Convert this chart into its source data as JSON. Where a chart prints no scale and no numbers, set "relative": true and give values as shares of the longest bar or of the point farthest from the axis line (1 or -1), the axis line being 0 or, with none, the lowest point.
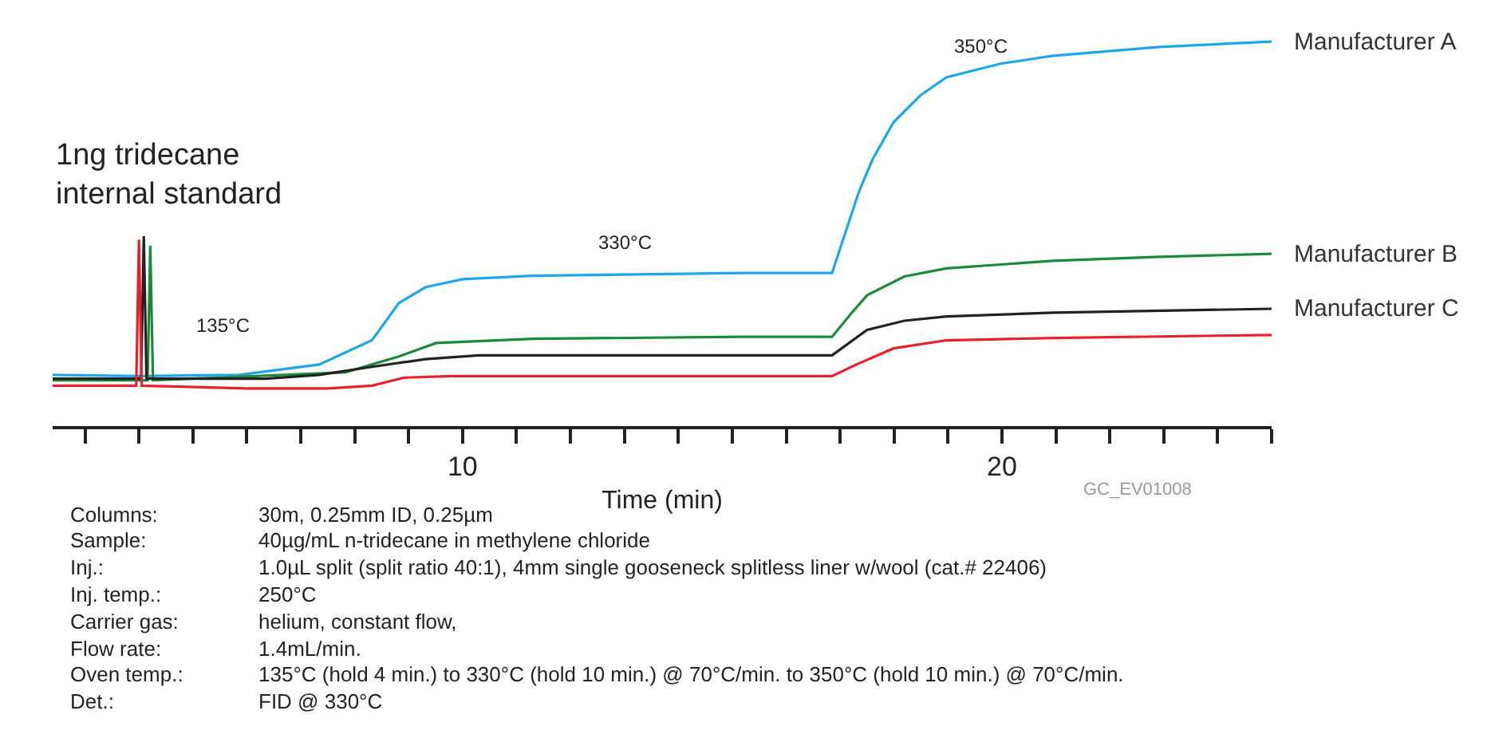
{
  "chart_data": {
    "type": "line",
    "relative": true,
    "xlabel": "Time (min)",
    "xlim": [
      2.4,
      25.0
    ],
    "xticks": [
      {
        "value": 3,
        "label": null
      },
      {
        "value": 4,
        "label": null
      },
      {
        "value": 5,
        "label": null
      },
      {
        "value": 6,
        "label": null
      },
      {
        "value": 7,
        "label": null
      },
      {
        "value": 8,
        "label": null
      },
      {
        "value": 9,
        "label": null
      },
      10,
      {
        "value": 11,
        "label": null
      },
      {
        "value": 12,
        "label": null
      },
      {
        "value": 13,
        "label": null
      },
      {
        "value": 14,
        "label": null
      },
      {
        "value": 15,
        "label": null
      },
      {
        "value": 16,
        "label": null
      },
      {
        "value": 17,
        "label": null
      },
      {
        "value": 18,
        "label": null
      },
      {
        "value": 19,
        "label": null
      },
      20,
      {
        "value": 21,
        "label": null
      },
      {
        "value": 22,
        "label": null
      },
      {
        "value": 23,
        "label": null
      },
      {
        "value": 24,
        "label": null
      },
      {
        "value": 25,
        "label": null
      }
    ],
    "legend": false,
    "marker": "none",
    "line_style": "solid",
    "series": [
      {
        "name": "Manufacturer A",
        "color": "#1ea7e8",
        "x": [
          2.4,
          4.0,
          5.86,
          7.34,
          8.32,
          8.82,
          9.31,
          10.0,
          11.3,
          15.2,
          16.85,
          17.35,
          17.6,
          17.99,
          18.48,
          18.97,
          19.96,
          20.95,
          22.92,
          25.0
        ],
        "values": [
          0.133,
          0.13,
          0.133,
          0.16,
          0.223,
          0.32,
          0.361,
          0.382,
          0.391,
          0.398,
          0.398,
          0.61,
          0.693,
          0.79,
          0.859,
          0.907,
          0.942,
          0.963,
          0.986,
          1.0
        ]
      },
      {
        "name": "Manufacturer B",
        "color": "#1a8a3a",
        "x": [
          2.4,
          4.16,
          4.21,
          4.26,
          7.83,
          8.82,
          9.51,
          11.3,
          15.2,
          16.85,
          17.2,
          17.5,
          18.19,
          18.97,
          20.95,
          22.92,
          25.0
        ],
        "values": [
          0.119,
          0.119,
          0.469,
          0.119,
          0.14,
          0.181,
          0.216,
          0.227,
          0.232,
          0.232,
          0.292,
          0.34,
          0.389,
          0.41,
          0.43,
          0.44,
          0.448
        ]
      },
      {
        "name": "Manufacturer C",
        "color": "#222222",
        "x": [
          2.4,
          4.04,
          4.09,
          4.14,
          6.35,
          7.34,
          8.32,
          9.31,
          10.3,
          16.85,
          17.5,
          18.19,
          18.97,
          20.95,
          25.0
        ],
        "values": [
          0.123,
          0.123,
          0.494,
          0.123,
          0.123,
          0.133,
          0.154,
          0.174,
          0.184,
          0.184,
          0.25,
          0.274,
          0.285,
          0.295,
          0.305
        ]
      },
      {
        "color": "#e8202a",
        "x": [
          2.4,
          3.95,
          4.0,
          4.05,
          6.0,
          7.5,
          8.32,
          8.92,
          9.8,
          16.85,
          17.3,
          17.99,
          18.97,
          20.95,
          25.0
        ],
        "values": [
          0.105,
          0.105,
          0.485,
          0.105,
          0.098,
          0.098,
          0.105,
          0.126,
          0.13,
          0.13,
          0.16,
          0.202,
          0.223,
          0.229,
          0.237
        ]
      }
    ],
    "annotations": [
      "1ng tridecane\ninternal standard",
      "135°C",
      "330°C",
      "350°C",
      "GC_EV01008",
      "Columns:\t30m, 0.25mm ID, 0.25µm",
      "Sample:\t40µg/mL n-tridecane in methylene chloride",
      "Inj.:\t1.0µL split (split ratio 40:1), 4mm single gooseneck splitless liner w/wool (cat.# 22406)",
      "Inj. temp.:\t250°C",
      "Carrier gas:\thelium, constant flow,",
      "Flow rate:\t1.4mL/min.",
      "Oven temp.:\t135°C (hold 4 min.) to 330°C (hold 10 min.) @ 70°C/min. to 350°C (hold 10 min.) @ 70°C/min.",
      "Det.:\tFID @ 330°C"
    ]
  }
}
